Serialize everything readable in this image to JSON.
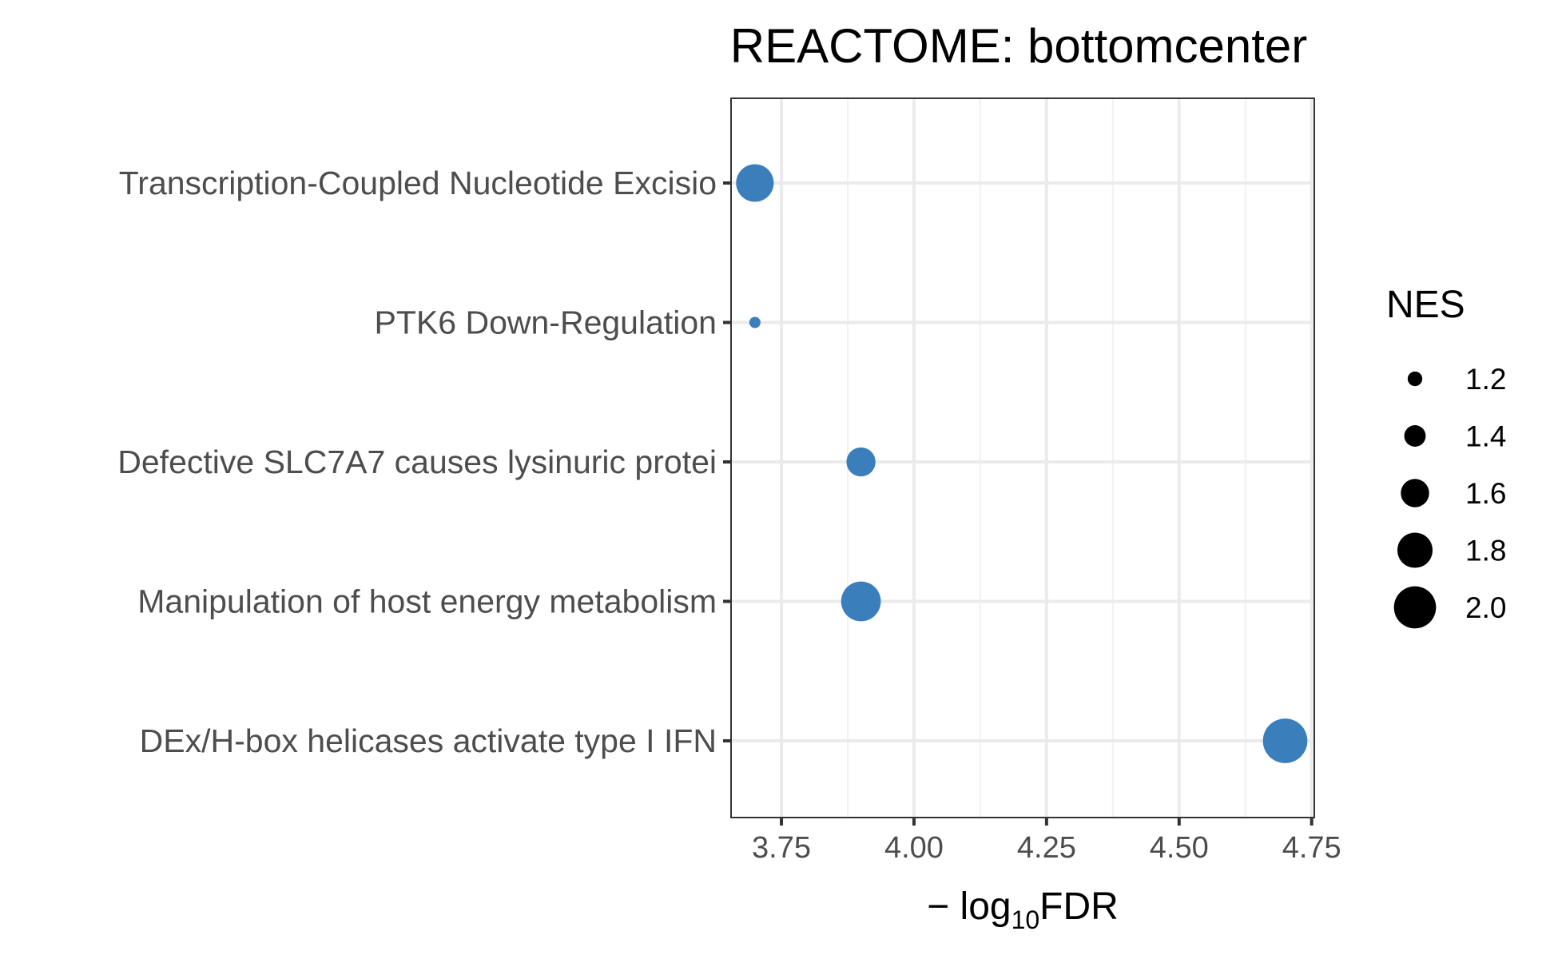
{
  "chart_data": {
    "type": "scatter",
    "title": "REACTOME: bottomcenter",
    "xlabel": {
      "prefix": "− log",
      "subscript": "10",
      "suffix": "FDR"
    },
    "ylabel": "",
    "xlim": [
      3.655,
      4.755
    ],
    "xticks": [
      3.75,
      4.0,
      4.25,
      4.5,
      4.75
    ],
    "xtick_labels": [
      "3.75",
      "4.00",
      "4.25",
      "4.50",
      "4.75"
    ],
    "grid": true,
    "categories": [
      "Transcription-Coupled Nucleotide Excisio",
      "PTK6 Down-Regulation",
      "Defective SLC7A7 causes lysinuric protei",
      "Manipulation of host energy metabolism",
      "DEx/H-box helicases activate type I IFN "
    ],
    "points": [
      {
        "category": "Transcription-Coupled Nucleotide Excisio",
        "x": 3.7,
        "nes": 1.87
      },
      {
        "category": "PTK6 Down-Regulation",
        "x": 3.7,
        "nes": 1.1
      },
      {
        "category": "Defective SLC7A7 causes lysinuric protei",
        "x": 3.9,
        "nes": 1.62
      },
      {
        "category": "Manipulation of host energy metabolism",
        "x": 3.9,
        "nes": 1.93
      },
      {
        "category": "DEx/H-box helicases activate type I IFN ",
        "x": 4.7,
        "nes": 2.07
      }
    ],
    "point_color": "#3a7ebb",
    "size_legend": {
      "title": "NES",
      "values": [
        1.2,
        1.4,
        1.6,
        1.8,
        2.0
      ],
      "labels": [
        "1.2",
        "1.4",
        "1.6",
        "1.8",
        "2.0"
      ],
      "color": "#000000",
      "placement": "right"
    }
  }
}
